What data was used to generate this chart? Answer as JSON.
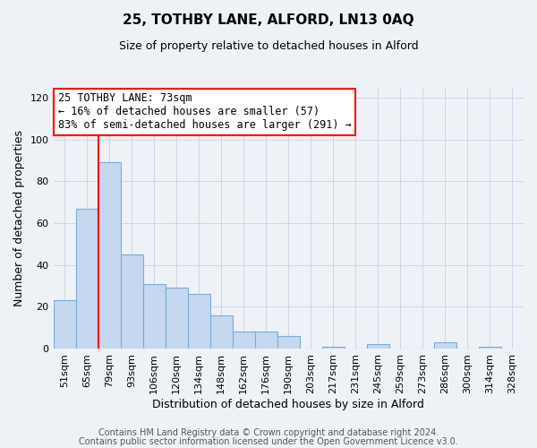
{
  "title": "25, TOTHBY LANE, ALFORD, LN13 0AQ",
  "subtitle": "Size of property relative to detached houses in Alford",
  "xlabel": "Distribution of detached houses by size in Alford",
  "ylabel": "Number of detached properties",
  "footer_lines": [
    "Contains HM Land Registry data © Crown copyright and database right 2024.",
    "Contains public sector information licensed under the Open Government Licence v3.0."
  ],
  "bar_labels": [
    "51sqm",
    "65sqm",
    "79sqm",
    "93sqm",
    "106sqm",
    "120sqm",
    "134sqm",
    "148sqm",
    "162sqm",
    "176sqm",
    "190sqm",
    "203sqm",
    "217sqm",
    "231sqm",
    "245sqm",
    "259sqm",
    "273sqm",
    "286sqm",
    "300sqm",
    "314sqm",
    "328sqm"
  ],
  "bar_values": [
    23,
    67,
    89,
    45,
    31,
    29,
    26,
    16,
    8,
    8,
    6,
    0,
    1,
    0,
    2,
    0,
    0,
    3,
    0,
    1,
    0
  ],
  "bar_color": "#c5d8f0",
  "bar_edgecolor": "#7aacd6",
  "grid_color": "#c8d8e8",
  "background_color": "#eef2f7",
  "plot_background": "#eef2f7",
  "annotation_box_text": "25 TOTHBY LANE: 73sqm\n← 16% of detached houses are smaller (57)\n83% of semi-detached houses are larger (291) →",
  "annotation_box_edgecolor": "red",
  "annotation_box_facecolor": "white",
  "vline_color": "red",
  "ylim": [
    0,
    125
  ],
  "yticks": [
    0,
    20,
    40,
    60,
    80,
    100,
    120
  ],
  "title_fontsize": 11,
  "subtitle_fontsize": 9,
  "xlabel_fontsize": 9,
  "ylabel_fontsize": 9,
  "tick_fontsize": 8,
  "annotation_fontsize": 8.5,
  "footer_fontsize": 7,
  "footer_color": "#555555"
}
